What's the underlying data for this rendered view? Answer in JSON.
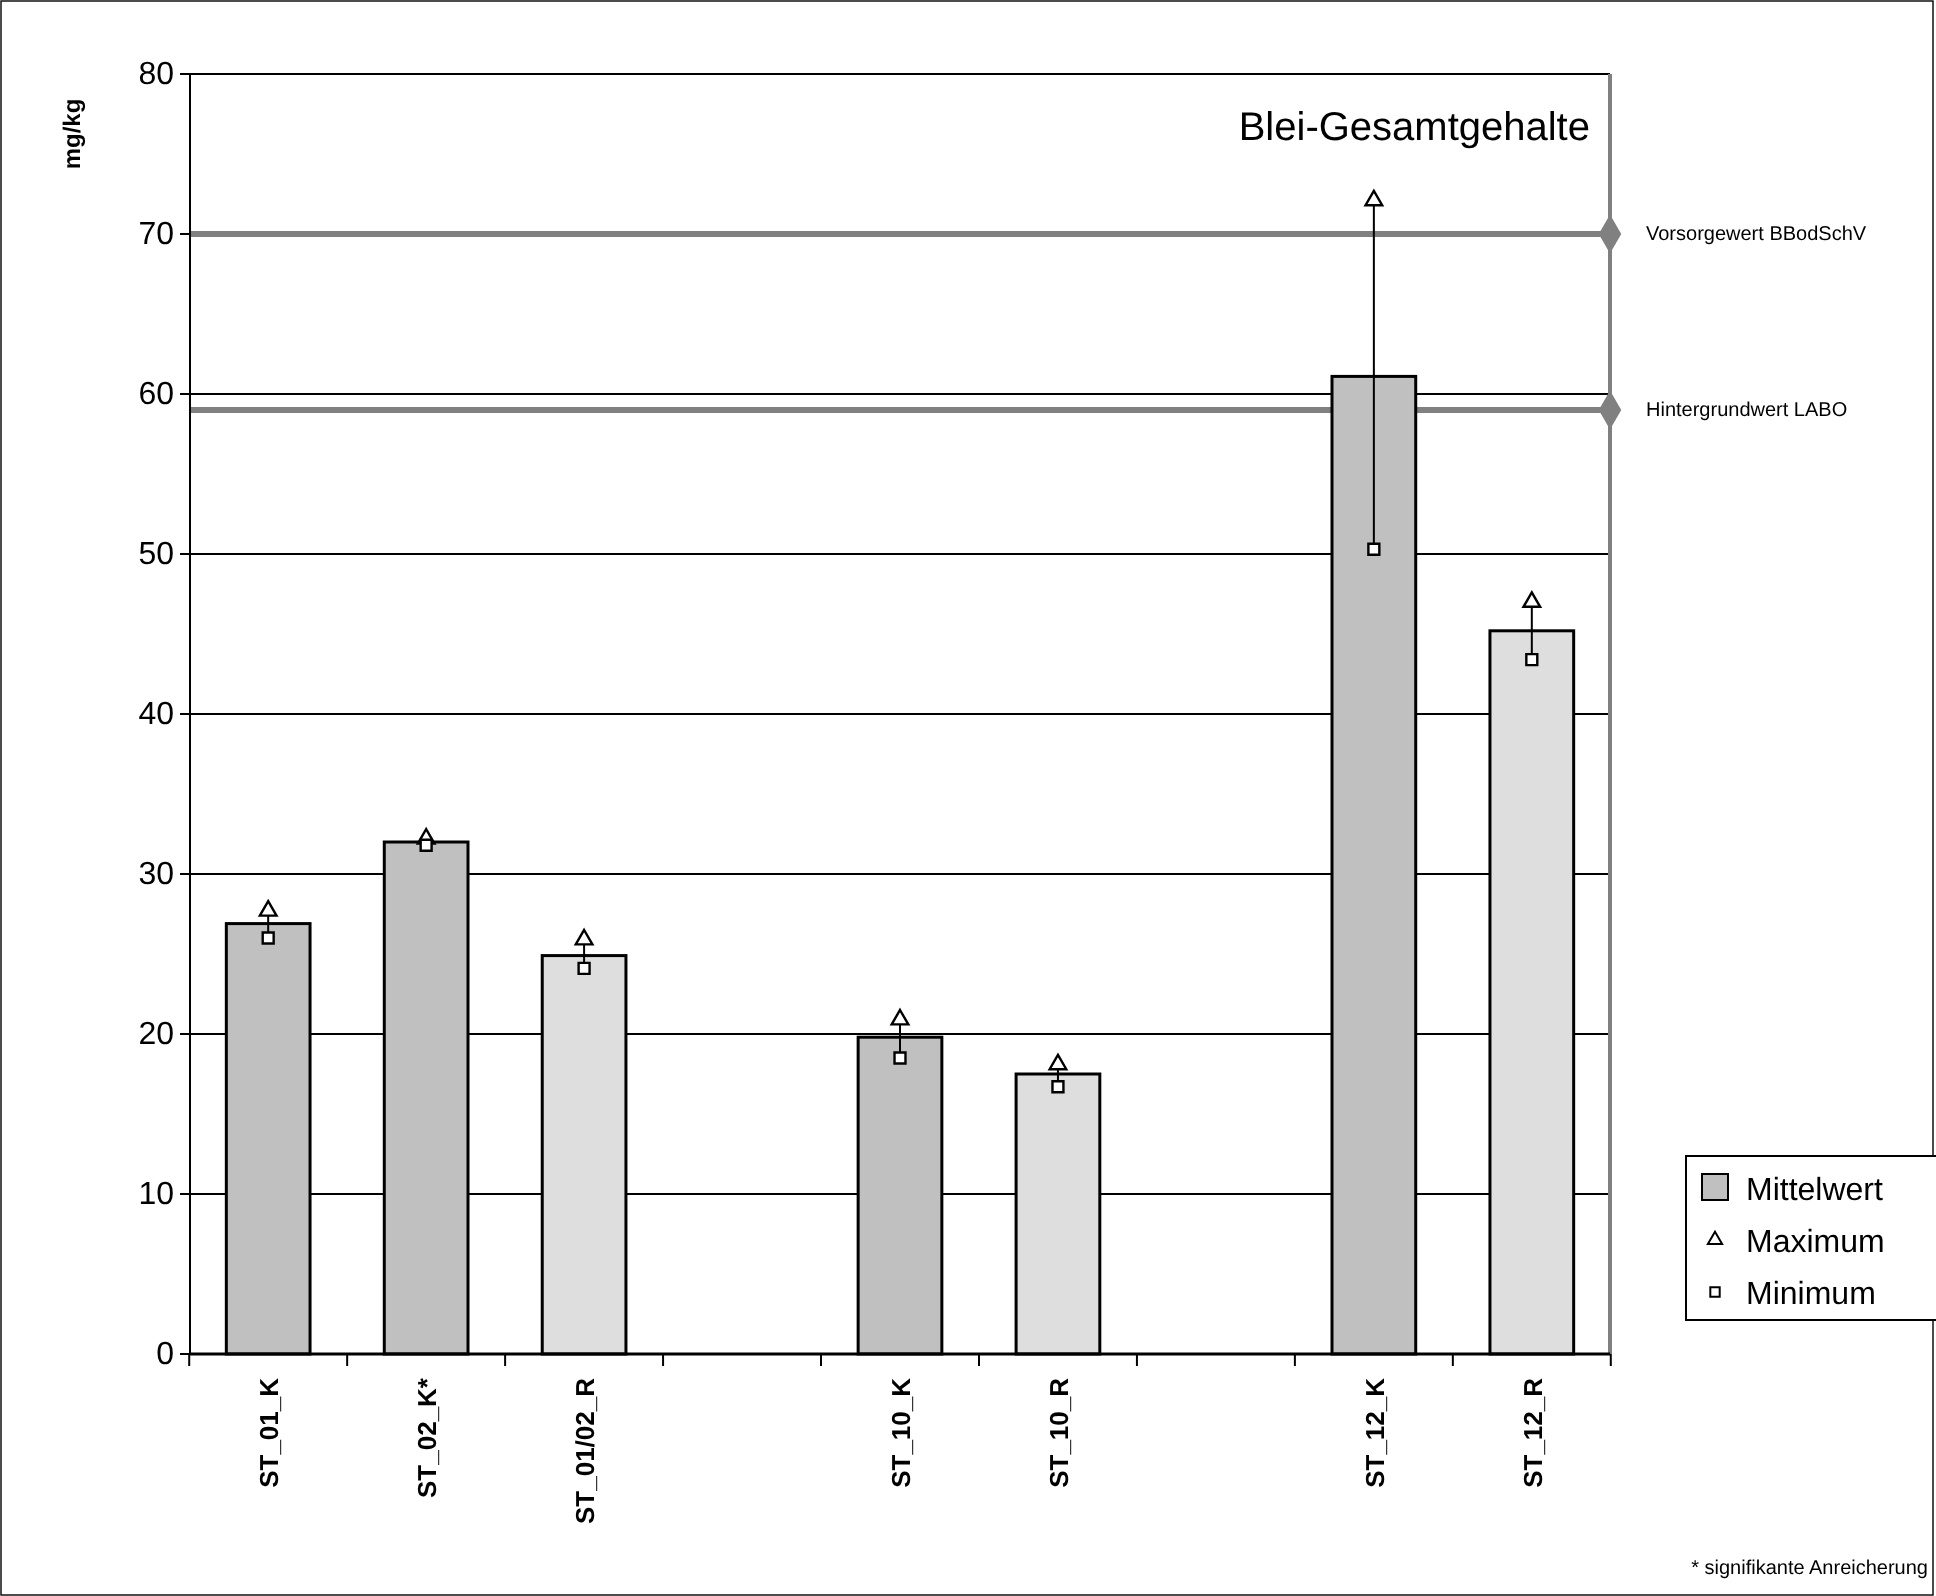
{
  "chart_data": {
    "type": "bar",
    "title": "Blei-Gesamtgehalte",
    "ylabel": "mg/kg",
    "categories": [
      "ST_01_K",
      "ST_02_K*",
      "ST_01/02_R",
      null,
      "ST_10_K",
      "ST_10_R",
      null,
      "ST_12_K",
      "ST_12_R"
    ],
    "series": [
      {
        "name": "Mittelwert",
        "colors": [
          "#c0c0c0",
          "#c0c0c0",
          "#dedede",
          null,
          "#c0c0c0",
          "#dedede",
          null,
          "#c0c0c0",
          "#dedede"
        ],
        "color": "#c0c0c0",
        "values": [
          26.9,
          32.0,
          24.9,
          null,
          19.8,
          17.5,
          null,
          61.1,
          45.2
        ]
      },
      {
        "name": "Maximum",
        "type": "scatter",
        "marker": "triangle",
        "color": "#000000",
        "values": [
          27.7,
          32.2,
          25.9,
          null,
          20.9,
          18.1,
          null,
          72.1,
          47.0
        ]
      },
      {
        "name": "Minimum",
        "type": "scatter",
        "marker": "square",
        "color": "#000000",
        "values": [
          26.0,
          31.8,
          24.1,
          null,
          18.5,
          16.7,
          null,
          50.3,
          43.4
        ]
      }
    ],
    "ylim": [
      0,
      80
    ],
    "yticks": [
      0,
      10,
      20,
      30,
      40,
      50,
      60,
      70,
      80
    ],
    "grid": "y",
    "legend": "bottom right",
    "ref_lines": [
      {
        "axis": "y",
        "value": 70,
        "label": "Vorsorgewert BBodSchV",
        "color": "#808080"
      },
      {
        "axis": "y",
        "value": 59,
        "label": "Hintergrundwert LABO",
        "color": "#808080"
      }
    ],
    "annotations": [
      "* signifikante Anreicherung"
    ]
  }
}
